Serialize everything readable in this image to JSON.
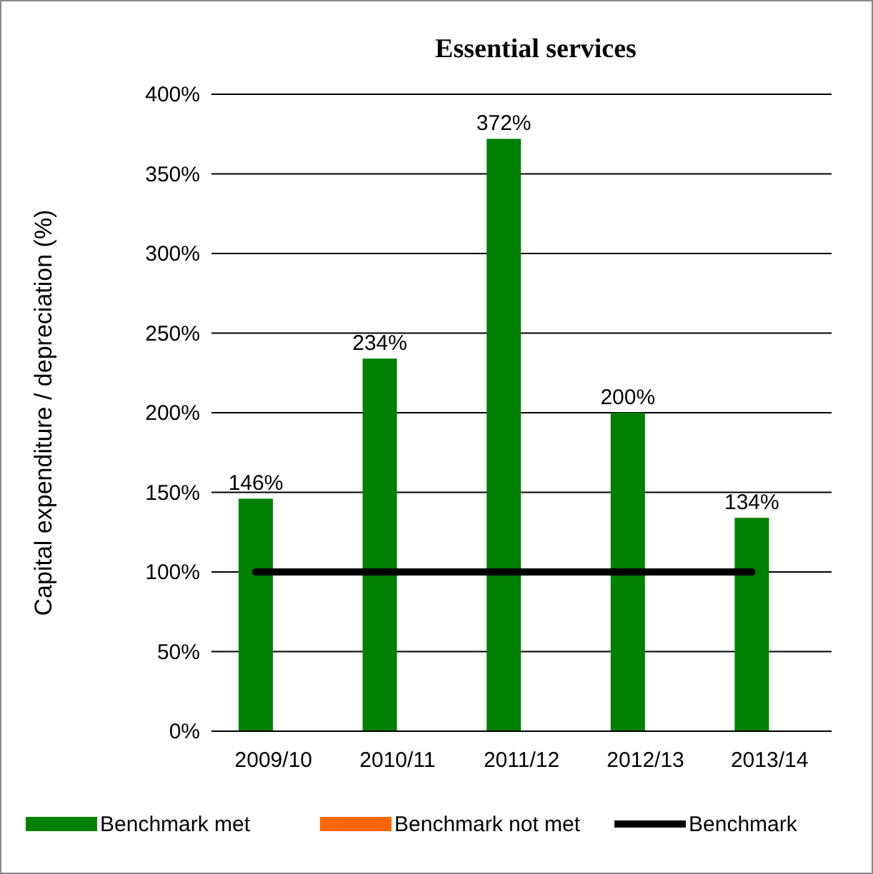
{
  "chart_data": {
    "type": "bar",
    "title": "Essential services",
    "ylabel": "Capital expenditure / depreciation (%)",
    "categories": [
      "2009/10",
      "2010/11",
      "2011/12",
      "2012/13",
      "2013/14"
    ],
    "series": [
      {
        "name": "Benchmark met",
        "color": "#008000",
        "values": [
          146,
          234,
          372,
          200,
          134
        ],
        "value_labels": [
          "146%",
          "234%",
          "372%",
          "200%",
          "134%"
        ]
      },
      {
        "name": "Benchmark not met",
        "color": "#ff6600",
        "values": [
          null,
          null,
          null,
          null,
          null
        ]
      },
      {
        "name": "Benchmark",
        "type": "line",
        "color": "#000000",
        "values": [
          100,
          100,
          100,
          100,
          100
        ]
      }
    ],
    "ylim": [
      0,
      400
    ],
    "yticks": [
      {
        "value": 0,
        "label": "0%"
      },
      {
        "value": 50,
        "label": "50%"
      },
      {
        "value": 100,
        "label": "100%"
      },
      {
        "value": 150,
        "label": "150%"
      },
      {
        "value": 200,
        "label": "200%"
      },
      {
        "value": 250,
        "label": "250%"
      },
      {
        "value": 300,
        "label": "300%"
      },
      {
        "value": 350,
        "label": "350%"
      },
      {
        "value": 400,
        "label": "400%"
      }
    ],
    "grid": "y",
    "legend": "bottom"
  }
}
